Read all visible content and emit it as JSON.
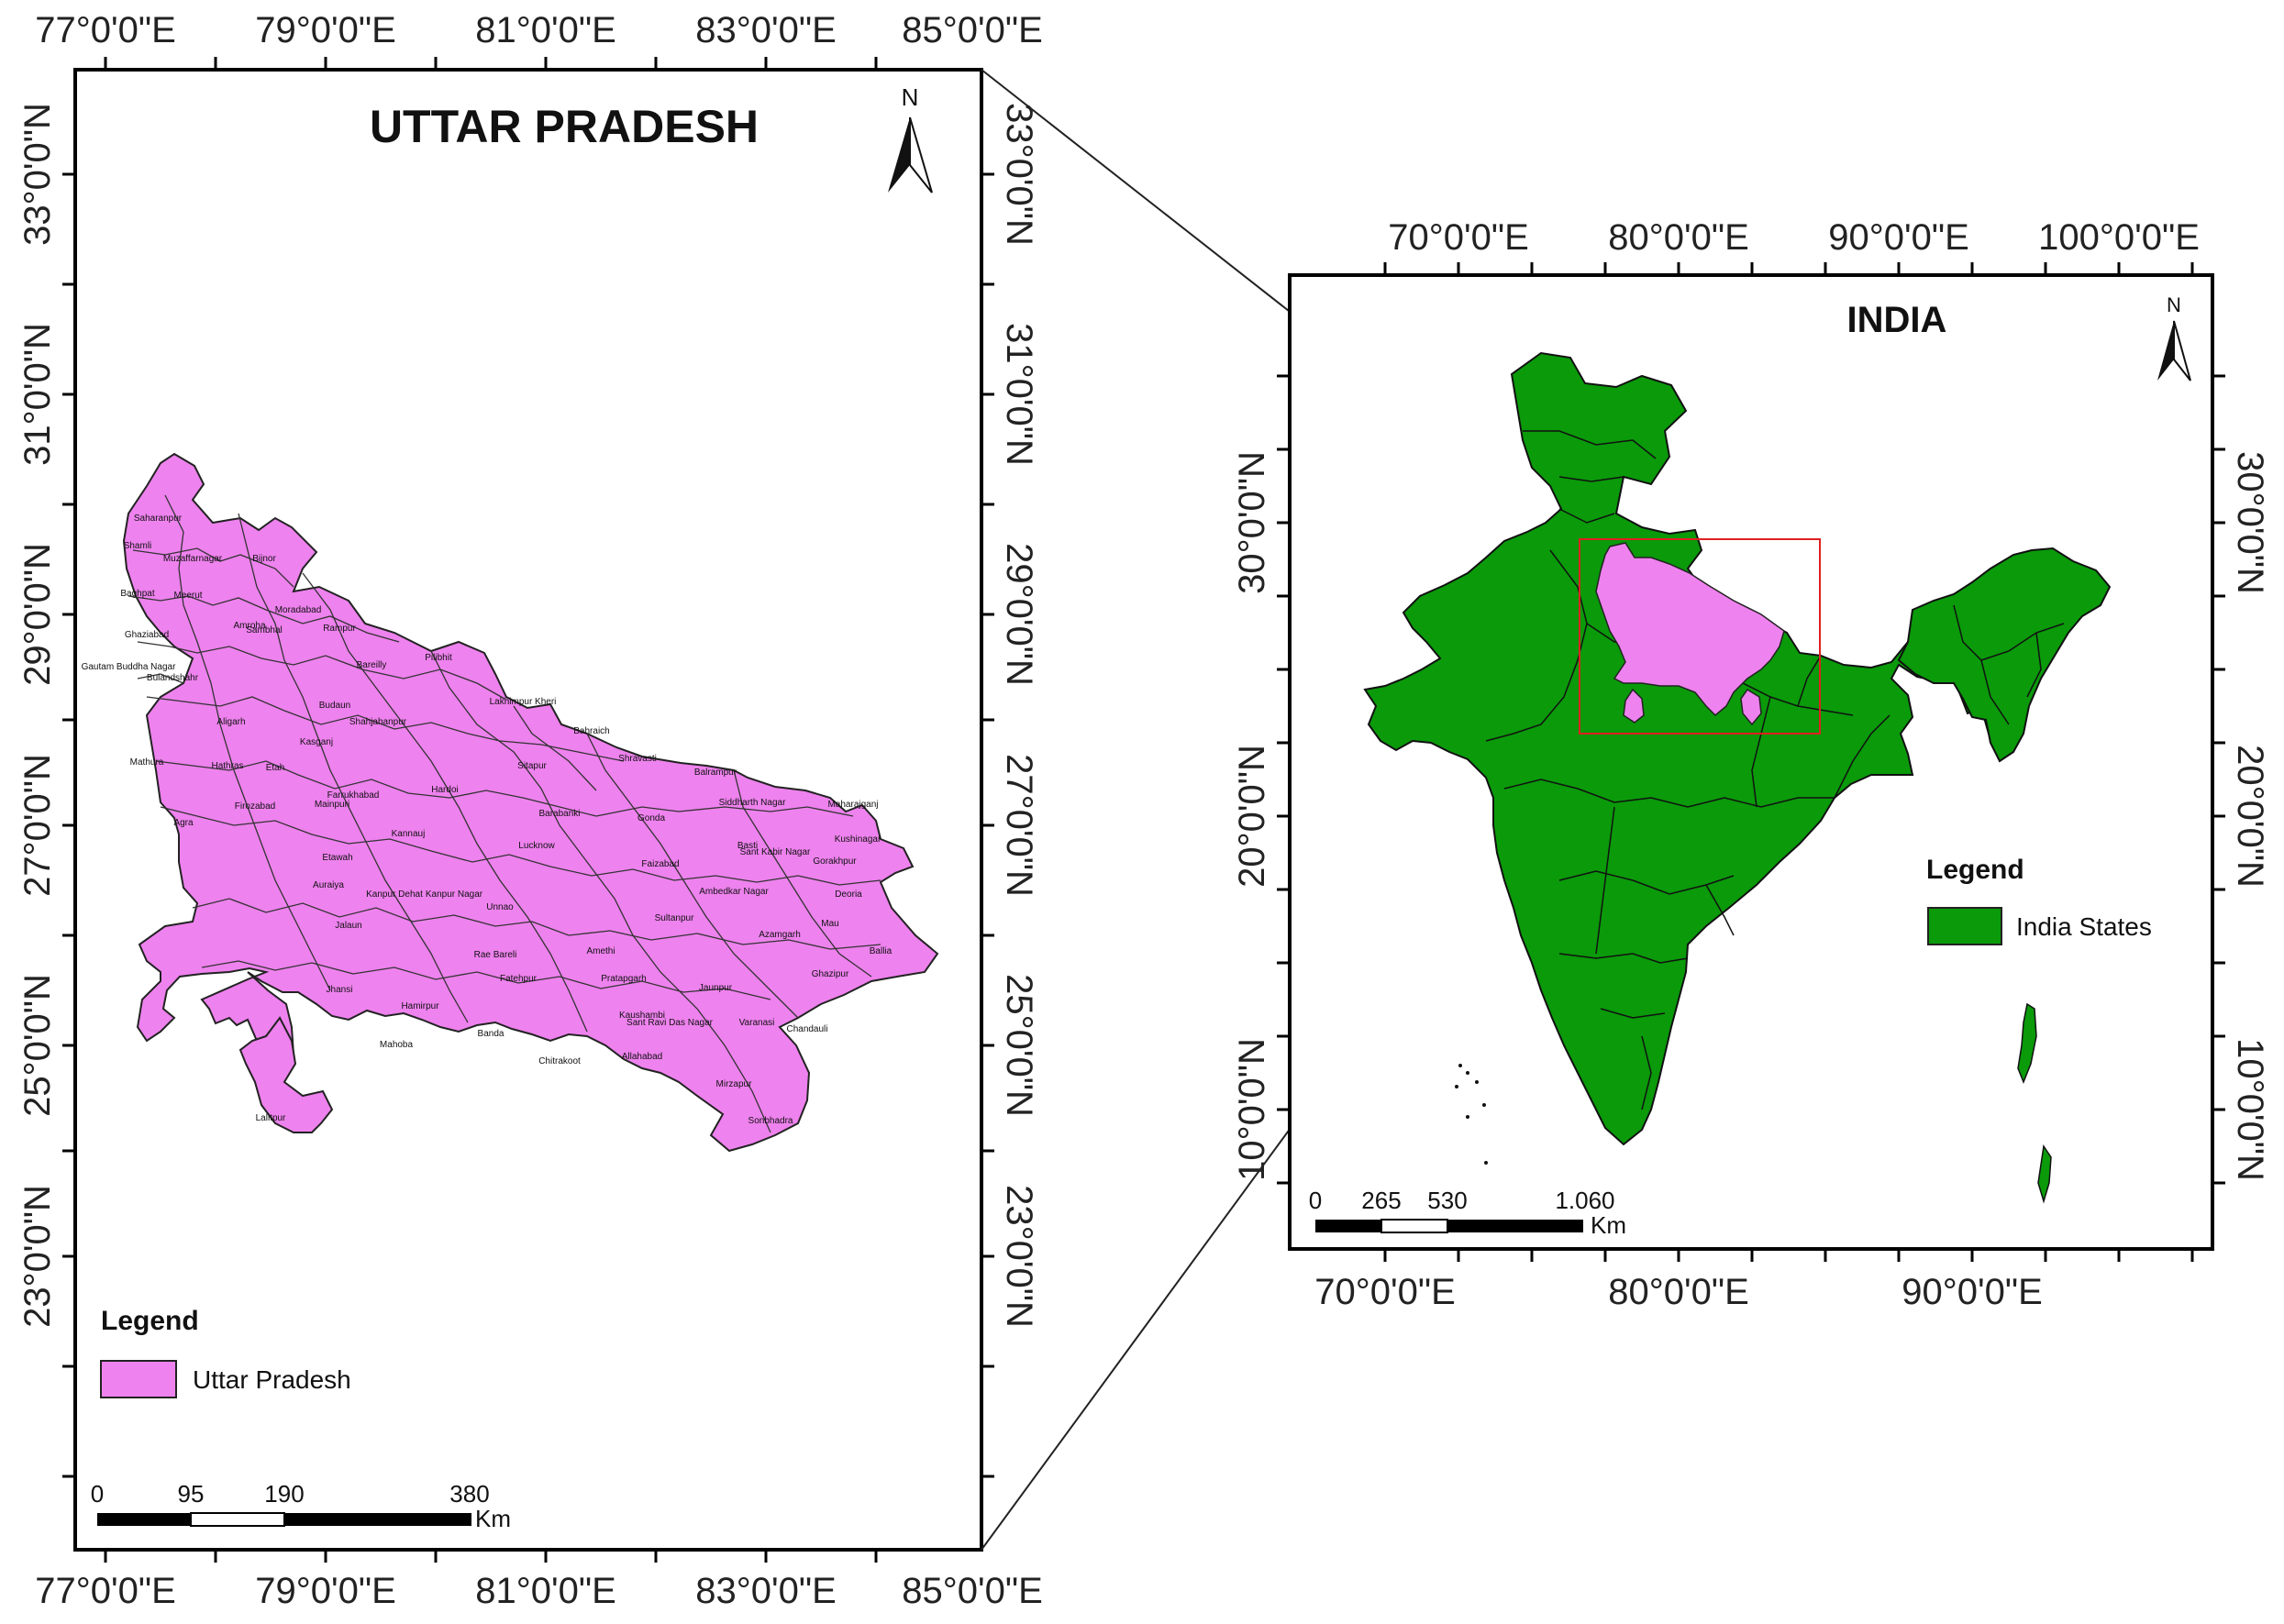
{
  "up_map": {
    "title": "UTTAR PRADESH",
    "north": "N",
    "lon_labels": [
      "77°0'0\"E",
      "79°0'0\"E",
      "81°0'0\"E",
      "83°0'0\"E",
      "85°0'0\"E"
    ],
    "lat_labels": [
      "33°0'0\"N",
      "31°0'0\"N",
      "29°0'0\"N",
      "27°0'0\"N",
      "25°0'0\"N",
      "23°0'0\"N"
    ],
    "legend": {
      "title": "Legend",
      "item": "Uttar Pradesh",
      "color": "#ee82ee"
    },
    "scalebar": {
      "ticks": [
        "0",
        "95",
        "190",
        "380"
      ],
      "unit": "Km"
    },
    "districts": [
      "Saharanpur",
      "Shamli",
      "Muzaffarnagar",
      "Bijnor",
      "Baghpat",
      "Meerut",
      "Moradabad",
      "Rampur",
      "Amroha",
      "Ghaziabad",
      "Sambhal",
      "Gautam Buddha Nagar",
      "Bulandshahr",
      "Bareilly",
      "Pilibhit",
      "Aligarh",
      "Budaun",
      "Shahjahanpur",
      "Lakhimpur Kheri",
      "Kasganj",
      "Mathura",
      "Hathras",
      "Etah",
      "Farrukhabad",
      "Hardoi",
      "Sitapur",
      "Shravasti",
      "Balrampur",
      "Siddharth Nagar",
      "Maharajganj",
      "Agra",
      "Firozabad",
      "Mainpuri",
      "Kannauj",
      "Bahraich",
      "Gonda",
      "Basti",
      "Sant Kabir Nagar",
      "Kushinagar",
      "Etawah",
      "Barabanki",
      "Lucknow",
      "Faizabad",
      "Gorakhpur",
      "Deoria",
      "Auraiya",
      "Kanpur Dehat",
      "Kanpur Nagar",
      "Unnao",
      "Ambedkar Nagar",
      "Mau",
      "Jalaun",
      "Rae Bareli",
      "Amethi",
      "Sultanpur",
      "Azamgarh",
      "Ballia",
      "Fatehpur",
      "Pratapgarh",
      "Jaunpur",
      "Ghazipur",
      "Jhansi",
      "Hamirpur",
      "Banda",
      "Kaushambi",
      "Sant Ravi Das Nagar",
      "Varanasi",
      "Chandauli",
      "Mahoba",
      "Chitrakoot",
      "Allahabad",
      "Mirzapur",
      "Lalitpur",
      "Sonbhadra"
    ]
  },
  "india_map": {
    "title": "INDIA",
    "north": "N",
    "lon_labels": [
      "70°0'0\"E",
      "80°0'0\"E",
      "90°0'0\"E",
      "100°0'0\"E"
    ],
    "lon_labels_bottom": [
      "70°0'0\"E",
      "80°0'0\"E",
      "90°0'0\"E"
    ],
    "lat_labels": [
      "30°0'0\"N",
      "20°0'0\"N",
      "10°0'0\"N"
    ],
    "legend": {
      "title": "Legend",
      "item": "India States",
      "color": "#0a9a0a"
    },
    "scalebar": {
      "ticks": [
        "0",
        "265",
        "530",
        "1.060"
      ],
      "unit": "Km"
    },
    "highlight_color": "#ee82ee",
    "extent_box_color": "#e02020"
  }
}
